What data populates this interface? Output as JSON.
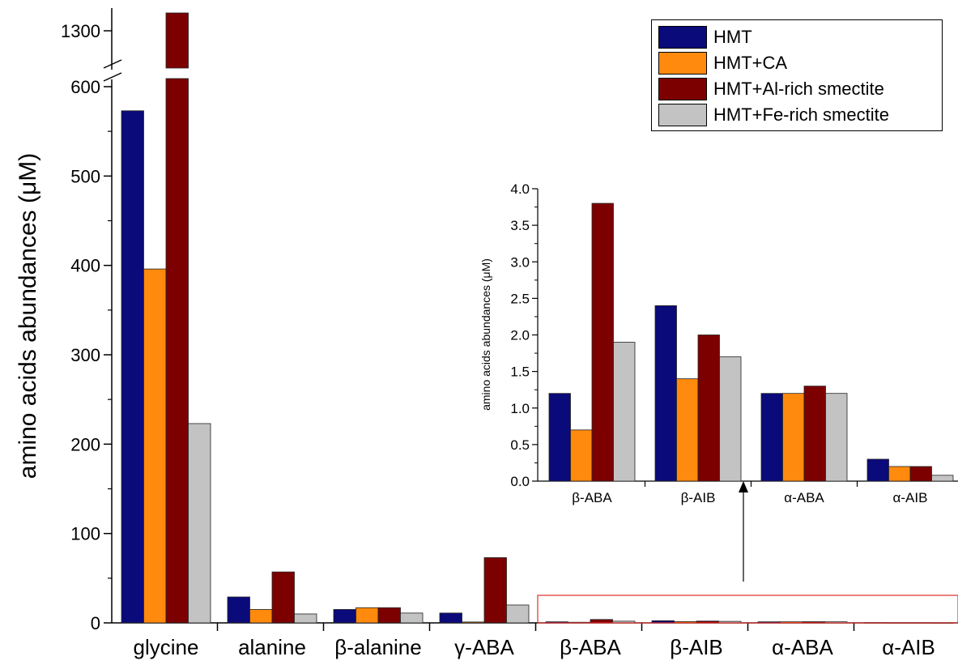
{
  "colors": {
    "HMT": "#0a0a7a",
    "HMT+CA": "#ff8a0d",
    "HMT+Al-rich smectite": "#7d0000",
    "HMT+Fe-rich smectite": "#c3c3c3",
    "inset_box": "#e0302a"
  },
  "legend": [
    {
      "label": "HMT",
      "color": "#0a0a7a"
    },
    {
      "label": "HMT+CA",
      "color": "#ff8a0d"
    },
    {
      "label": "HMT+Al-rich smectite",
      "color": "#7d0000"
    },
    {
      "label": "HMT+Fe-rich smectite",
      "color": "#c3c3c3"
    }
  ],
  "chart_data": [
    {
      "type": "bar",
      "title": "",
      "xlabel": "",
      "ylabel": "amino acids abundances (μM)",
      "y_axis": "broken",
      "y_ticks": [
        "0",
        "100",
        "200",
        "300",
        "400",
        "500",
        "600",
        "1300"
      ],
      "ylim_lower": [
        0,
        600
      ],
      "ylim_upper": [
        1250,
        1330
      ],
      "categories": [
        "glycine",
        "alanine",
        "β-alanine",
        "γ-ABA",
        "β-ABA",
        "β-AIB",
        "α-ABA",
        "α-AIB"
      ],
      "series": [
        {
          "name": "HMT",
          "values": [
            573,
            29,
            15,
            11,
            1.2,
            2.4,
            1.2,
            0.3
          ]
        },
        {
          "name": "HMT+CA",
          "values": [
            396,
            15,
            17,
            1,
            0.7,
            1.4,
            1.2,
            0.2
          ]
        },
        {
          "name": "HMT+Al-rich smectite",
          "values": [
            1325,
            57,
            17,
            73,
            3.8,
            2.0,
            1.3,
            0.2
          ]
        },
        {
          "name": "HMT+Fe-rich smectite",
          "values": [
            223,
            10,
            11,
            20,
            1.9,
            1.7,
            1.2,
            0.08
          ]
        }
      ],
      "legend_position": "top-right",
      "grid": false
    },
    {
      "type": "bar",
      "title": "",
      "xlabel": "",
      "ylabel": "amino acids abundances (μM)",
      "ylim": [
        0,
        4.0
      ],
      "y_ticks": [
        "0.0",
        "0.5",
        "1.0",
        "1.5",
        "2.0",
        "2.5",
        "3.0",
        "3.5",
        "4.0"
      ],
      "categories": [
        "β-ABA",
        "β-AIB",
        "α-ABA",
        "α-AIB"
      ],
      "series": [
        {
          "name": "HMT",
          "values": [
            1.2,
            2.4,
            1.2,
            0.3
          ]
        },
        {
          "name": "HMT+CA",
          "values": [
            0.7,
            1.4,
            1.2,
            0.2
          ]
        },
        {
          "name": "HMT+Al-rich smectite",
          "values": [
            3.8,
            2.0,
            1.3,
            0.2
          ]
        },
        {
          "name": "HMT+Fe-rich smectite",
          "values": [
            1.9,
            1.7,
            1.2,
            0.08
          ]
        }
      ],
      "grid": false
    }
  ]
}
